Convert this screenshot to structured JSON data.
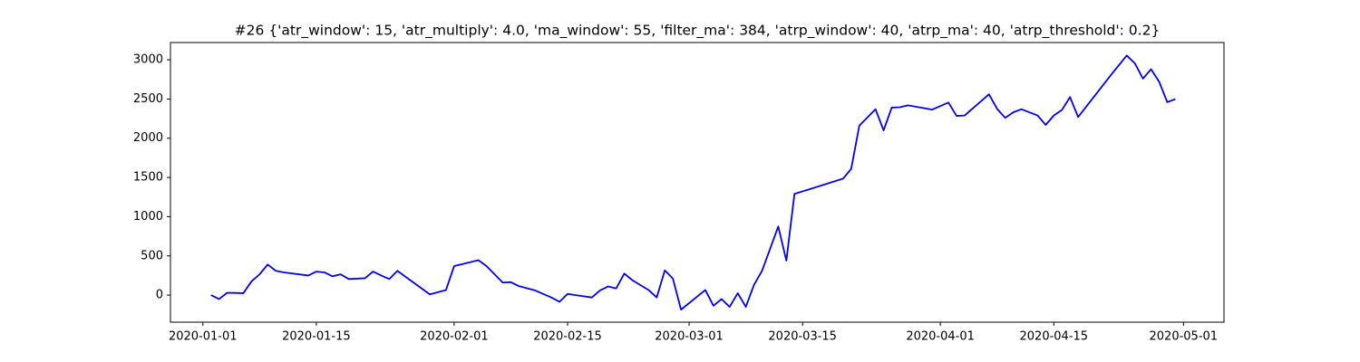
{
  "chart_data": {
    "type": "line",
    "title": "#26 {'atr_window': 15, 'atr_multiply': 4.0, 'ma_window': 55, 'filter_ma': 384, 'atrp_window': 40, 'atrp_ma': 40, 'atrp_threshold': 0.2}",
    "color": "#0000ff",
    "x": [
      "2020-01-02",
      "2020-01-03",
      "2020-01-04",
      "2020-01-06",
      "2020-01-07",
      "2020-01-08",
      "2020-01-09",
      "2020-01-10",
      "2020-01-11",
      "2020-01-14",
      "2020-01-15",
      "2020-01-16",
      "2020-01-17",
      "2020-01-18",
      "2020-01-19",
      "2020-01-21",
      "2020-01-22",
      "2020-01-23",
      "2020-01-24",
      "2020-01-25",
      "2020-01-27",
      "2020-01-29",
      "2020-01-31",
      "2020-02-01",
      "2020-02-04",
      "2020-02-05",
      "2020-02-06",
      "2020-02-07",
      "2020-02-08",
      "2020-02-09",
      "2020-02-11",
      "2020-02-12",
      "2020-02-13",
      "2020-02-14",
      "2020-02-15",
      "2020-02-18",
      "2020-02-19",
      "2020-02-20",
      "2020-02-21",
      "2020-02-22",
      "2020-02-23",
      "2020-02-25",
      "2020-02-26",
      "2020-02-27",
      "2020-02-28",
      "2020-02-29",
      "2020-03-03",
      "2020-03-04",
      "2020-03-05",
      "2020-03-06",
      "2020-03-07",
      "2020-03-08",
      "2020-03-09",
      "2020-03-10",
      "2020-03-12",
      "2020-03-13",
      "2020-03-14",
      "2020-03-20",
      "2020-03-21",
      "2020-03-22",
      "2020-03-24",
      "2020-03-25",
      "2020-03-26",
      "2020-03-27",
      "2020-03-28",
      "2020-03-31",
      "2020-04-02",
      "2020-04-03",
      "2020-04-04",
      "2020-04-07",
      "2020-04-08",
      "2020-04-09",
      "2020-04-10",
      "2020-04-11",
      "2020-04-13",
      "2020-04-14",
      "2020-04-15",
      "2020-04-16",
      "2020-04-17",
      "2020-04-18",
      "2020-04-22",
      "2020-04-24",
      "2020-04-25",
      "2020-04-26",
      "2020-04-27",
      "2020-04-28",
      "2020-04-29",
      "2020-04-30"
    ],
    "values": [
      0,
      -50,
      30,
      25,
      175,
      265,
      390,
      310,
      290,
      250,
      300,
      290,
      240,
      265,
      205,
      215,
      300,
      250,
      205,
      310,
      160,
      10,
      65,
      370,
      445,
      370,
      265,
      160,
      165,
      115,
      60,
      15,
      -30,
      -85,
      15,
      -30,
      60,
      110,
      85,
      275,
      190,
      65,
      -30,
      315,
      210,
      -185,
      65,
      -135,
      -50,
      -150,
      25,
      -150,
      130,
      310,
      875,
      440,
      1290,
      1485,
      1610,
      2160,
      2370,
      2100,
      2390,
      2395,
      2420,
      2365,
      2455,
      2285,
      2290,
      2560,
      2375,
      2260,
      2330,
      2370,
      2290,
      2170,
      2290,
      2360,
      2525,
      2270,
      2800,
      3055,
      2955,
      2760,
      2880,
      2720,
      2460,
      2500
    ],
    "xlim": [
      "2019-12-28",
      "2020-05-06"
    ],
    "xticks": [
      "2020-01-01",
      "2020-01-15",
      "2020-02-01",
      "2020-02-15",
      "2020-03-01",
      "2020-03-15",
      "2020-04-01",
      "2020-04-15",
      "2020-05-01"
    ],
    "ylim": [
      -345,
      3220
    ],
    "yticks": [
      0,
      500,
      1000,
      1500,
      2000,
      2500,
      3000
    ],
    "grid": false
  }
}
